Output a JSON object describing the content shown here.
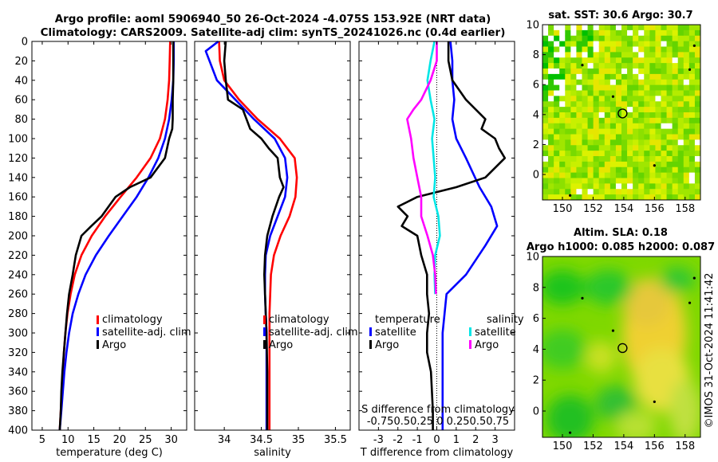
{
  "header": {
    "title_line1": "Argo profile: aoml 5906940_50 26-Oct-2024 -4.075S 153.92E (NRT data)",
    "title_line2": "Climatology: CARS2009. Satellite-adj clim: synTS_20241026.nc (0.4d earlier)"
  },
  "footer": {
    "imos_stamp": "©IMOS 31-Oct-2024 11:41:42"
  },
  "colors": {
    "climatology": "#ff0000",
    "satellite": "#0000ff",
    "argo": "#000000",
    "sat_salinity": "#00e6e6",
    "argo_salinity": "#ff00ff",
    "map_green": "#00cc00",
    "map_yellow": "#e6e600",
    "map_white": "#ffffff"
  },
  "chart_data": [
    {
      "type": "line",
      "id": "temperature",
      "xlabel": "temperature (deg C)",
      "ylabel": "",
      "xlim": [
        3,
        33
      ],
      "ylim": [
        400,
        0
      ],
      "xticks": [
        5,
        10,
        15,
        20,
        25,
        30
      ],
      "yticks": [
        0,
        20,
        40,
        60,
        80,
        100,
        120,
        140,
        160,
        180,
        200,
        220,
        240,
        260,
        280,
        300,
        320,
        340,
        360,
        380,
        400
      ],
      "legend": [
        "climatology",
        "satellite-adj. clim",
        "Argo"
      ],
      "series": [
        {
          "name": "climatology",
          "color": "#ff0000",
          "points": [
            [
              29.8,
              0
            ],
            [
              29.7,
              20
            ],
            [
              29.6,
              40
            ],
            [
              29.3,
              60
            ],
            [
              28.8,
              80
            ],
            [
              27.8,
              100
            ],
            [
              26.0,
              120
            ],
            [
              23.3,
              140
            ],
            [
              20.2,
              160
            ],
            [
              17.2,
              180
            ],
            [
              14.6,
              200
            ],
            [
              12.6,
              220
            ],
            [
              11.3,
              240
            ],
            [
              10.5,
              260
            ],
            [
              9.9,
              280
            ],
            [
              9.5,
              300
            ],
            [
              9.2,
              320
            ],
            [
              9.0,
              340
            ],
            [
              8.8,
              360
            ],
            [
              8.6,
              380
            ],
            [
              8.4,
              400
            ]
          ]
        },
        {
          "name": "satellite-adj. clim",
          "color": "#0000ff",
          "points": [
            [
              30.5,
              0
            ],
            [
              30.5,
              20
            ],
            [
              30.4,
              40
            ],
            [
              30.1,
              60
            ],
            [
              29.6,
              80
            ],
            [
              28.8,
              100
            ],
            [
              27.5,
              120
            ],
            [
              25.6,
              140
            ],
            [
              23.3,
              160
            ],
            [
              20.6,
              180
            ],
            [
              17.9,
              200
            ],
            [
              15.4,
              220
            ],
            [
              13.4,
              240
            ],
            [
              12.0,
              260
            ],
            [
              10.9,
              280
            ],
            [
              10.2,
              300
            ],
            [
              9.7,
              320
            ],
            [
              9.3,
              340
            ],
            [
              9.0,
              360
            ],
            [
              8.7,
              380
            ],
            [
              8.4,
              400
            ]
          ]
        },
        {
          "name": "Argo",
          "color": "#000000",
          "points": [
            [
              30.4,
              0
            ],
            [
              30.4,
              20
            ],
            [
              30.4,
              40
            ],
            [
              30.3,
              60
            ],
            [
              30.3,
              80
            ],
            [
              30.2,
              90
            ],
            [
              29.6,
              100
            ],
            [
              28.8,
              120
            ],
            [
              26.0,
              140
            ],
            [
              22.0,
              150
            ],
            [
              19.2,
              160
            ],
            [
              16.5,
              180
            ],
            [
              14.5,
              190
            ],
            [
              12.6,
              200
            ],
            [
              11.5,
              220
            ],
            [
              10.9,
              240
            ],
            [
              10.2,
              260
            ],
            [
              9.8,
              280
            ],
            [
              9.5,
              300
            ],
            [
              9.2,
              320
            ],
            [
              8.9,
              340
            ],
            [
              8.7,
              360
            ],
            [
              8.6,
              380
            ],
            [
              8.4,
              400
            ]
          ]
        }
      ]
    },
    {
      "type": "line",
      "id": "salinity",
      "xlabel": "salinity",
      "ylabel": "",
      "xlim": [
        33.6,
        35.7
      ],
      "ylim": [
        400,
        0
      ],
      "xticks": [
        34,
        34.5,
        35,
        35.5
      ],
      "yticks": [
        0,
        20,
        40,
        60,
        80,
        100,
        120,
        140,
        160,
        180,
        200,
        220,
        240,
        260,
        280,
        300,
        320,
        340,
        360,
        380,
        400
      ],
      "legend": [
        "climatology",
        "satellite-adj. clim",
        "Argo"
      ],
      "series": [
        {
          "name": "climatology",
          "color": "#ff0000",
          "points": [
            [
              33.93,
              0
            ],
            [
              33.94,
              20
            ],
            [
              34.0,
              40
            ],
            [
              34.2,
              60
            ],
            [
              34.45,
              80
            ],
            [
              34.75,
              100
            ],
            [
              34.95,
              120
            ],
            [
              34.98,
              140
            ],
            [
              34.96,
              160
            ],
            [
              34.88,
              180
            ],
            [
              34.76,
              200
            ],
            [
              34.67,
              220
            ],
            [
              34.63,
              240
            ],
            [
              34.62,
              260
            ],
            [
              34.61,
              280
            ],
            [
              34.61,
              300
            ],
            [
              34.61,
              320
            ],
            [
              34.61,
              340
            ],
            [
              34.61,
              360
            ],
            [
              34.61,
              380
            ],
            [
              34.61,
              400
            ]
          ]
        },
        {
          "name": "satellite-adj. clim",
          "color": "#0000ff",
          "points": [
            [
              33.92,
              0
            ],
            [
              33.75,
              10
            ],
            [
              33.8,
              20
            ],
            [
              33.9,
              40
            ],
            [
              34.15,
              60
            ],
            [
              34.4,
              80
            ],
            [
              34.68,
              100
            ],
            [
              34.82,
              120
            ],
            [
              34.85,
              140
            ],
            [
              34.82,
              160
            ],
            [
              34.72,
              180
            ],
            [
              34.62,
              200
            ],
            [
              34.56,
              220
            ],
            [
              34.55,
              240
            ],
            [
              34.55,
              260
            ],
            [
              34.56,
              280
            ],
            [
              34.57,
              300
            ],
            [
              34.57,
              340
            ],
            [
              34.57,
              400
            ]
          ]
        },
        {
          "name": "Argo",
          "color": "#000000",
          "points": [
            [
              34.02,
              0
            ],
            [
              34.0,
              20
            ],
            [
              34.02,
              40
            ],
            [
              34.05,
              60
            ],
            [
              34.25,
              70
            ],
            [
              34.35,
              90
            ],
            [
              34.5,
              100
            ],
            [
              34.6,
              110
            ],
            [
              34.72,
              120
            ],
            [
              34.75,
              140
            ],
            [
              34.8,
              150
            ],
            [
              34.74,
              160
            ],
            [
              34.65,
              180
            ],
            [
              34.58,
              200
            ],
            [
              34.55,
              220
            ],
            [
              34.54,
              240
            ],
            [
              34.55,
              260
            ],
            [
              34.56,
              280
            ],
            [
              34.57,
              300
            ],
            [
              34.58,
              340
            ],
            [
              34.58,
              400
            ]
          ]
        }
      ]
    },
    {
      "type": "line",
      "id": "differences",
      "xlabel": "T difference from climatology",
      "top_label": "S difference from climatology",
      "top_ticks": "-0.750.50.25 0  0.250.50.75",
      "xlim": [
        -4,
        4
      ],
      "ylim": [
        400,
        0
      ],
      "xticks": [
        -3,
        -2,
        -1,
        0,
        1,
        2,
        3
      ],
      "yticks": [
        0,
        20,
        40,
        60,
        80,
        100,
        120,
        140,
        160,
        180,
        200,
        220,
        240,
        260,
        280,
        300,
        320,
        340,
        360,
        380,
        400
      ],
      "legend_left_title": "temperature",
      "legend_left": [
        "satellite",
        "Argo"
      ],
      "legend_right_title": "salinity",
      "legend_right": [
        "satellite",
        "Argo"
      ],
      "series": [
        {
          "name": "temperature satellite",
          "color": "#0000ff",
          "points": [
            [
              0.7,
              0
            ],
            [
              0.8,
              20
            ],
            [
              0.8,
              40
            ],
            [
              0.9,
              60
            ],
            [
              0.8,
              80
            ],
            [
              1.0,
              100
            ],
            [
              1.5,
              120
            ],
            [
              2.2,
              150
            ],
            [
              2.8,
              170
            ],
            [
              3.1,
              190
            ],
            [
              2.5,
              210
            ],
            [
              1.5,
              240
            ],
            [
              0.5,
              260
            ],
            [
              0.3,
              300
            ],
            [
              0.3,
              340
            ],
            [
              0.3,
              400
            ]
          ]
        },
        {
          "name": "temperature Argo",
          "color": "#000000",
          "points": [
            [
              0.6,
              0
            ],
            [
              0.6,
              20
            ],
            [
              0.8,
              40
            ],
            [
              1.5,
              60
            ],
            [
              2.5,
              80
            ],
            [
              2.3,
              90
            ],
            [
              3.0,
              100
            ],
            [
              3.2,
              110
            ],
            [
              3.5,
              120
            ],
            [
              2.5,
              140
            ],
            [
              1.0,
              150
            ],
            [
              -1.0,
              160
            ],
            [
              -2.0,
              170
            ],
            [
              -1.5,
              180
            ],
            [
              -1.8,
              190
            ],
            [
              -1.0,
              200
            ],
            [
              -0.8,
              220
            ],
            [
              -0.5,
              240
            ],
            [
              -0.5,
              260
            ],
            [
              -0.4,
              280
            ],
            [
              -0.5,
              300
            ],
            [
              -0.5,
              320
            ],
            [
              -0.3,
              340
            ],
            [
              -0.2,
              380
            ],
            [
              -0.2,
              400
            ]
          ]
        },
        {
          "name": "salinity satellite",
          "color": "#00e6e6",
          "points": [
            [
              -0.03,
              0
            ],
            [
              -0.08,
              20
            ],
            [
              -0.12,
              40
            ],
            [
              -0.08,
              60
            ],
            [
              -0.03,
              80
            ],
            [
              -0.06,
              100
            ],
            [
              -0.04,
              120
            ],
            [
              -0.02,
              140
            ],
            [
              -0.04,
              160
            ],
            [
              0.02,
              180
            ],
            [
              0.04,
              200
            ],
            [
              -0.02,
              220
            ],
            [
              -0.03,
              240
            ],
            [
              -0.02,
              260
            ]
          ]
        },
        {
          "name": "salinity Argo",
          "color": "#ff00ff",
          "points": [
            [
              0.0,
              0
            ],
            [
              0.0,
              20
            ],
            [
              -0.08,
              40
            ],
            [
              -0.2,
              60
            ],
            [
              -0.3,
              70
            ],
            [
              -0.38,
              80
            ],
            [
              -0.33,
              100
            ],
            [
              -0.3,
              120
            ],
            [
              -0.25,
              140
            ],
            [
              -0.2,
              160
            ],
            [
              -0.2,
              180
            ],
            [
              -0.12,
              200
            ],
            [
              -0.05,
              220
            ],
            [
              -0.02,
              240
            ],
            [
              -0.01,
              260
            ]
          ]
        }
      ]
    },
    {
      "type": "heatmap",
      "id": "sst_map",
      "title": "sat. SST: 30.6  Argo: 30.7",
      "xlim": [
        148.7,
        159
      ],
      "ylim": [
        -1.7,
        10
      ],
      "xticks": [
        150,
        152,
        154,
        156,
        158
      ],
      "yticks": [
        0,
        2,
        4,
        6,
        8,
        10
      ],
      "argo_location": [
        153.92,
        4.075
      ]
    },
    {
      "type": "heatmap",
      "id": "sla_map",
      "title": "Altim. SLA: 0.18",
      "subtitle": "Argo h1000: 0.085 h2000: 0.087",
      "xlim": [
        148.7,
        159
      ],
      "ylim": [
        -1.7,
        10
      ],
      "xticks": [
        150,
        152,
        154,
        156,
        158
      ],
      "yticks": [
        0,
        2,
        4,
        6,
        8,
        10
      ],
      "argo_location": [
        153.92,
        4.075
      ]
    }
  ]
}
